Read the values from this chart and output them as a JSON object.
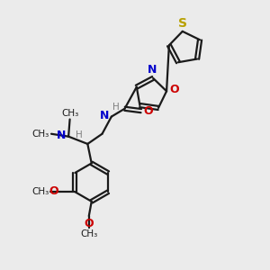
{
  "bg_color": "#ebebeb",
  "bond_color": "#1a1a1a",
  "S_color": "#b8a000",
  "O_color": "#cc0000",
  "N_color": "#0000cc",
  "H_color": "#808080",
  "line_width": 1.6,
  "figsize": [
    3.0,
    3.0
  ],
  "dpi": 100,
  "xlim": [
    0,
    10
  ],
  "ylim": [
    0,
    10
  ]
}
